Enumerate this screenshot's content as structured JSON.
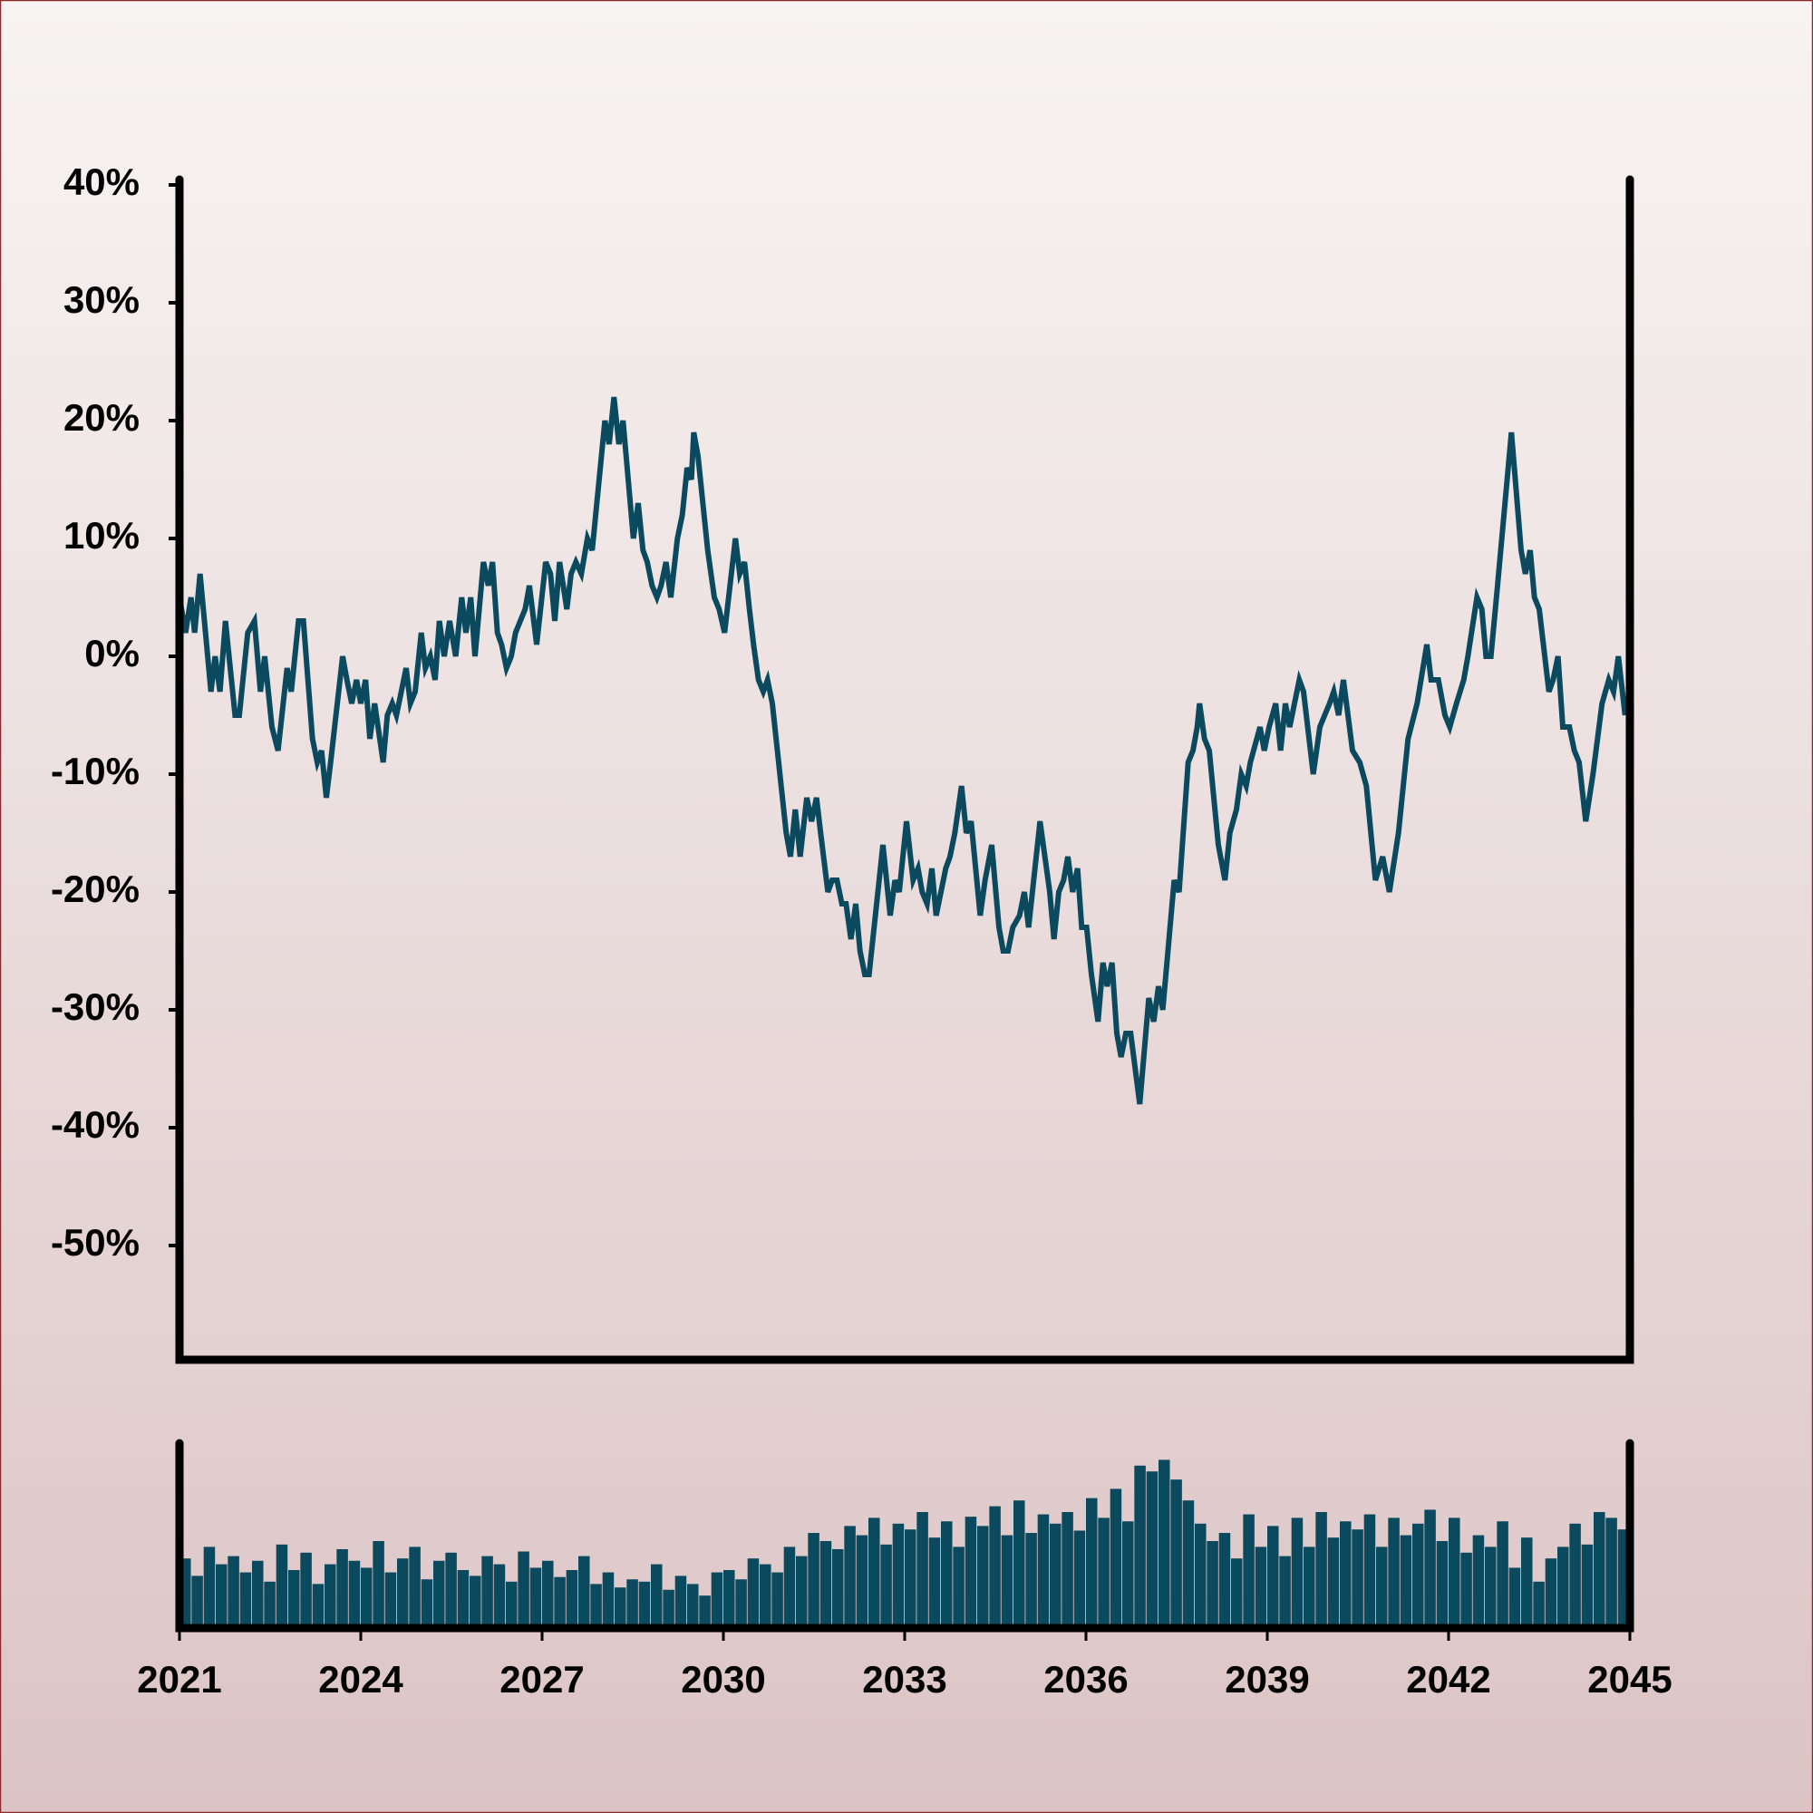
{
  "chart_data": [
    {
      "type": "line",
      "color": "#0b4a5e",
      "grid": false,
      "xlim": [
        2021,
        2045
      ],
      "ylim": [
        -60,
        40
      ],
      "yticks": [
        {
          "value": 40,
          "label": "40%"
        },
        {
          "value": 30,
          "label": "30%"
        },
        {
          "value": 20,
          "label": "20%"
        },
        {
          "value": 10,
          "label": "10%"
        },
        {
          "value": 0,
          "label": "0%"
        },
        {
          "value": -10,
          "label": "-10%"
        },
        {
          "value": -20,
          "label": "-20%"
        },
        {
          "value": -30,
          "label": "-30%"
        },
        {
          "value": -40,
          "label": "-40%"
        },
        {
          "value": -50,
          "label": "-50%"
        }
      ],
      "x": [
        2021.0,
        2021.1,
        2021.19,
        2021.25,
        2021.34,
        2021.52,
        2021.59,
        2021.67,
        2021.76,
        2021.92,
        2021.99,
        2022.13,
        2022.24,
        2022.34,
        2022.41,
        2022.53,
        2022.63,
        2022.78,
        2022.85,
        2022.97,
        2023.05,
        2023.2,
        2023.28,
        2023.35,
        2023.43,
        2023.5,
        2023.7,
        2023.77,
        2023.85,
        2023.93,
        2024.0,
        2024.08,
        2024.15,
        2024.23,
        2024.37,
        2024.44,
        2024.52,
        2024.59,
        2024.67,
        2024.75,
        2024.82,
        2024.9,
        2025.0,
        2025.07,
        2025.15,
        2025.23,
        2025.3,
        2025.38,
        2025.47,
        2025.57,
        2025.67,
        2025.74,
        2025.82,
        2025.89,
        2026.03,
        2026.11,
        2026.18,
        2026.26,
        2026.33,
        2026.41,
        2026.49,
        2026.56,
        2026.64,
        2026.72,
        2026.79,
        2026.91,
        2027.06,
        2027.14,
        2027.21,
        2027.29,
        2027.41,
        2027.48,
        2027.56,
        2027.65,
        2027.75,
        2027.83,
        2028.04,
        2028.11,
        2028.19,
        2028.27,
        2028.34,
        2028.51,
        2028.59,
        2028.67,
        2028.74,
        2028.82,
        2028.9,
        2028.97,
        2029.05,
        2029.13,
        2029.24,
        2029.32,
        2029.4,
        2029.47,
        2029.51,
        2029.58,
        2029.74,
        2029.85,
        2029.93,
        2030.02,
        2030.2,
        2030.27,
        2030.35,
        2030.43,
        2030.5,
        2030.58,
        2030.66,
        2030.73,
        2030.81,
        2031.04,
        2031.11,
        2031.19,
        2031.27,
        2031.38,
        2031.46,
        2031.54,
        2031.61,
        2031.73,
        2031.8,
        2031.88,
        2031.96,
        2032.03,
        2032.11,
        2032.19,
        2032.26,
        2032.34,
        2032.41,
        2032.64,
        2032.76,
        2032.84,
        2032.91,
        2033.03,
        2033.14,
        2033.22,
        2033.29,
        2033.37,
        2033.45,
        2033.52,
        2033.6,
        2033.68,
        2033.75,
        2033.83,
        2033.94,
        2034.02,
        2034.1,
        2034.25,
        2034.33,
        2034.44,
        2034.56,
        2034.63,
        2034.71,
        2034.79,
        2034.9,
        2034.98,
        2035.05,
        2035.24,
        2035.4,
        2035.47,
        2035.55,
        2035.63,
        2035.7,
        2035.78,
        2035.86,
        2035.93,
        2036.01,
        2036.09,
        2036.2,
        2036.28,
        2036.35,
        2036.43,
        2036.51,
        2036.58,
        2036.66,
        2036.74,
        2036.89,
        2037.04,
        2037.12,
        2037.2,
        2037.27,
        2037.46,
        2037.54,
        2037.69,
        2037.77,
        2037.84,
        2037.88,
        2037.96,
        2038.04,
        2038.19,
        2038.3,
        2038.38,
        2038.49,
        2038.57,
        2038.65,
        2038.72,
        2038.88,
        2038.95,
        2039.03,
        2039.14,
        2039.22,
        2039.3,
        2039.37,
        2039.53,
        2039.6,
        2039.76,
        2039.87,
        2039.95,
        2040.03,
        2040.1,
        2040.18,
        2040.26,
        2040.41,
        2040.53,
        2040.64,
        2040.79,
        2040.91,
        2041.02,
        2041.17,
        2041.33,
        2041.48,
        2041.64,
        2041.71,
        2041.83,
        2041.94,
        2042.02,
        2042.13,
        2042.25,
        2042.32,
        2042.47,
        2042.55,
        2042.62,
        2042.7,
        2042.81,
        2043.04,
        2043.2,
        2043.27,
        2043.35,
        2043.42,
        2043.5,
        2043.66,
        2043.73,
        2043.81,
        2043.89,
        2044.0,
        2044.08,
        2044.16,
        2044.27,
        2044.39,
        2044.54,
        2044.65,
        2044.73,
        2044.81,
        2044.92
      ],
      "values": [
        5,
        2,
        5,
        2,
        7,
        -3,
        0,
        -3,
        3,
        -5,
        -5,
        2,
        3,
        -3,
        0,
        -6,
        -8,
        -1,
        -3,
        3,
        3,
        -7,
        -9,
        -8,
        -12,
        -9,
        0,
        -2,
        -4,
        -2,
        -4,
        -2,
        -7,
        -4,
        -9,
        -5,
        -4,
        -5,
        -3,
        -1,
        -4,
        -3,
        2,
        -1,
        0,
        -2,
        3,
        0,
        3,
        0,
        5,
        2,
        5,
        0,
        8,
        6,
        8,
        2,
        1,
        -1,
        0,
        2,
        3,
        4,
        6,
        1,
        8,
        7,
        3,
        8,
        4,
        7,
        8,
        7,
        10,
        9,
        20,
        18,
        22,
        18,
        20,
        10,
        13,
        9,
        8,
        6,
        5,
        6,
        8,
        5,
        10,
        12,
        16,
        15,
        19,
        17,
        9,
        5,
        4,
        2,
        10,
        7,
        8,
        4,
        1,
        -2,
        -3,
        -2,
        -4,
        -15,
        -17,
        -13,
        -17,
        -12,
        -14,
        -12,
        -15,
        -20,
        -19,
        -19,
        -21,
        -21,
        -24,
        -21,
        -25,
        -27,
        -27,
        -16,
        -22,
        -19,
        -20,
        -14,
        -19,
        -18,
        -20,
        -21,
        -18,
        -22,
        -20,
        -18,
        -17,
        -15,
        -11,
        -15,
        -14,
        -22,
        -19,
        -16,
        -23,
        -25,
        -25,
        -23,
        -22,
        -20,
        -23,
        -14,
        -20,
        -24,
        -20,
        -19,
        -17,
        -20,
        -18,
        -23,
        -23,
        -27,
        -31,
        -26,
        -28,
        -26,
        -32,
        -34,
        -32,
        -32,
        -38,
        -29,
        -31,
        -28,
        -30,
        -19,
        -20,
        -9,
        -8,
        -6,
        -4,
        -7,
        -8,
        -16,
        -19,
        -15,
        -13,
        -10,
        -11,
        -9,
        -6,
        -8,
        -6,
        -4,
        -8,
        -4,
        -6,
        -2,
        -3,
        -10,
        -6,
        -5,
        -4,
        -3,
        -5,
        -2,
        -8,
        -9,
        -11,
        -19,
        -17,
        -20,
        -15,
        -7,
        -4,
        1,
        -2,
        -2,
        -5,
        -6,
        -4,
        -2,
        0,
        5,
        4,
        0,
        0,
        6,
        19,
        9,
        7,
        9,
        5,
        4,
        -3,
        -2,
        0,
        -6,
        -6,
        -8,
        -9,
        -14,
        -10,
        -4,
        -2,
        -3,
        0,
        -5
      ]
    },
    {
      "type": "bar",
      "color": "#0b4a5e",
      "xlim": [
        2021,
        2045
      ],
      "ylim": [
        0,
        150
      ],
      "xticks": [
        2021,
        2024,
        2027,
        2030,
        2033,
        2036,
        2039,
        2042,
        2045
      ],
      "x": [
        2021.0,
        2021.2,
        2021.4,
        2021.6,
        2021.8,
        2022.0,
        2022.2,
        2022.4,
        2022.6,
        2022.8,
        2023.0,
        2023.2,
        2023.4,
        2023.6,
        2023.8,
        2024.0,
        2024.2,
        2024.4,
        2024.6,
        2024.8,
        2025.0,
        2025.2,
        2025.4,
        2025.6,
        2025.8,
        2026.0,
        2026.2,
        2026.4,
        2026.6,
        2026.8,
        2027.0,
        2027.2,
        2027.4,
        2027.6,
        2027.8,
        2028.0,
        2028.2,
        2028.4,
        2028.6,
        2028.8,
        2029.0,
        2029.2,
        2029.4,
        2029.6,
        2029.8,
        2030.0,
        2030.2,
        2030.4,
        2030.6,
        2030.8,
        2031.0,
        2031.2,
        2031.4,
        2031.6,
        2031.8,
        2032.0,
        2032.2,
        2032.4,
        2032.6,
        2032.8,
        2033.0,
        2033.2,
        2033.4,
        2033.6,
        2033.8,
        2034.0,
        2034.2,
        2034.4,
        2034.6,
        2034.8,
        2035.0,
        2035.2,
        2035.4,
        2035.6,
        2035.8,
        2036.0,
        2036.2,
        2036.4,
        2036.6,
        2036.8,
        2037.0,
        2037.2,
        2037.4,
        2037.6,
        2037.8,
        2038.0,
        2038.2,
        2038.4,
        2038.6,
        2038.8,
        2039.0,
        2039.2,
        2039.4,
        2039.6,
        2039.8,
        2040.0,
        2040.2,
        2040.4,
        2040.6,
        2040.8,
        2041.0,
        2041.2,
        2041.4,
        2041.6,
        2041.8,
        2042.0,
        2042.2,
        2042.4,
        2042.6,
        2042.8,
        2043.0,
        2043.2,
        2043.4,
        2043.6,
        2043.8,
        2044.0,
        2044.2,
        2044.4,
        2044.6,
        2044.8
      ],
      "values": [
        60,
        45,
        70,
        55,
        62,
        48,
        58,
        40,
        72,
        50,
        65,
        38,
        55,
        68,
        58,
        52,
        75,
        48,
        60,
        70,
        42,
        58,
        65,
        50,
        45,
        62,
        55,
        40,
        66,
        52,
        58,
        44,
        50,
        62,
        38,
        48,
        35,
        42,
        40,
        55,
        33,
        45,
        38,
        28,
        48,
        50,
        42,
        60,
        55,
        48,
        70,
        62,
        82,
        75,
        68,
        88,
        80,
        95,
        72,
        90,
        85,
        100,
        78,
        92,
        70,
        96,
        88,
        105,
        80,
        110,
        82,
        98,
        90,
        100,
        84,
        112,
        95,
        120,
        92,
        140,
        135,
        145,
        128,
        110,
        90,
        75,
        82,
        60,
        98,
        70,
        88,
        62,
        95,
        70,
        100,
        78,
        92,
        85,
        98,
        70,
        95,
        80,
        90,
        102,
        75,
        95,
        65,
        80,
        70,
        92,
        52,
        78,
        40,
        60,
        70,
        90,
        72,
        100,
        95,
        85
      ]
    }
  ]
}
